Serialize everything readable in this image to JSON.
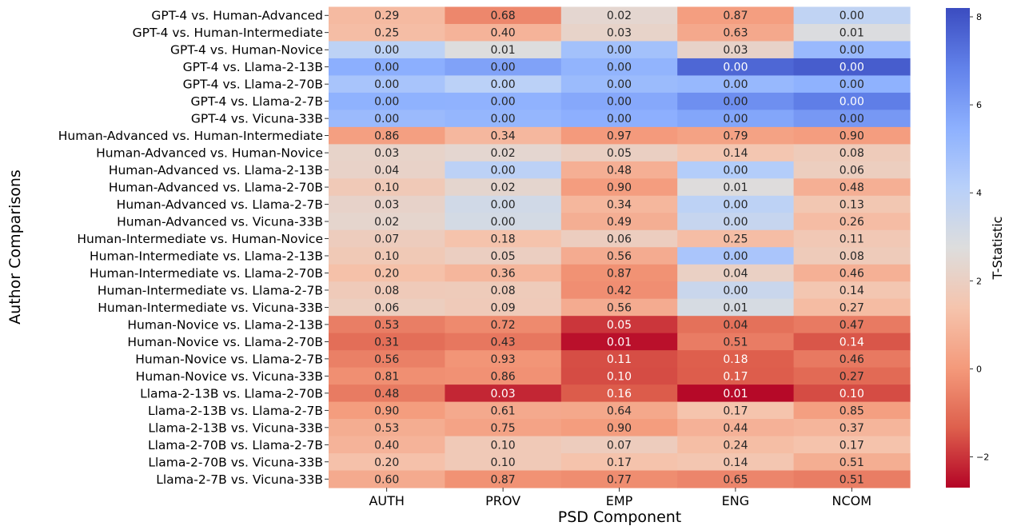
{
  "chart_data": {
    "type": "heatmap",
    "xlabel": "PSD Component",
    "ylabel": "Author Comparisons",
    "colorbar_label": "T-Statistic",
    "colorbar_ticks": [
      -2,
      0,
      2,
      4,
      6,
      8
    ],
    "colorbar_range": [
      -2.7,
      8.2
    ],
    "colormap": "coolwarm",
    "columns": [
      "AUTH",
      "PROV",
      "EMP",
      "ENG",
      "NCOM"
    ],
    "rows": [
      "GPT-4 vs. Human-Advanced",
      "GPT-4 vs. Human-Intermediate",
      "GPT-4 vs. Human-Novice",
      "GPT-4 vs. Llama-2-13B",
      "GPT-4 vs. Llama-2-70B",
      "GPT-4 vs. Llama-2-7B",
      "GPT-4 vs. Vicuna-33B",
      "Human-Advanced vs. Human-Intermediate",
      "Human-Advanced vs. Human-Novice",
      "Human-Advanced vs. Llama-2-13B",
      "Human-Advanced vs. Llama-2-70B",
      "Human-Advanced vs. Llama-2-7B",
      "Human-Advanced vs. Vicuna-33B",
      "Human-Intermediate vs. Human-Novice",
      "Human-Intermediate vs. Llama-2-13B",
      "Human-Intermediate vs. Llama-2-70B",
      "Human-Intermediate vs. Llama-2-7B",
      "Human-Intermediate vs. Vicuna-33B",
      "Human-Novice vs. Llama-2-13B",
      "Human-Novice vs. Llama-2-70B",
      "Human-Novice vs. Llama-2-7B",
      "Human-Novice vs. Vicuna-33B",
      "Llama-2-13B vs. Llama-2-70B",
      "Llama-2-13B vs. Llama-2-7B",
      "Llama-2-13B vs. Vicuna-33B",
      "Llama-2-70B vs. Llama-2-7B",
      "Llama-2-70B vs. Vicuna-33B",
      "Llama-2-7B vs. Vicuna-33B"
    ],
    "cell_labels": [
      [
        "0.29",
        "0.68",
        "0.02",
        "0.87",
        "0.00"
      ],
      [
        "0.25",
        "0.40",
        "0.03",
        "0.63",
        "0.01"
      ],
      [
        "0.00",
        "0.01",
        "0.00",
        "0.03",
        "0.00"
      ],
      [
        "0.00",
        "0.00",
        "0.00",
        "0.00",
        "0.00"
      ],
      [
        "0.00",
        "0.00",
        "0.00",
        "0.00",
        "0.00"
      ],
      [
        "0.00",
        "0.00",
        "0.00",
        "0.00",
        "0.00"
      ],
      [
        "0.00",
        "0.00",
        "0.00",
        "0.00",
        "0.00"
      ],
      [
        "0.86",
        "0.34",
        "0.97",
        "0.79",
        "0.90"
      ],
      [
        "0.03",
        "0.02",
        "0.05",
        "0.14",
        "0.08"
      ],
      [
        "0.04",
        "0.00",
        "0.48",
        "0.00",
        "0.06"
      ],
      [
        "0.10",
        "0.02",
        "0.90",
        "0.01",
        "0.48"
      ],
      [
        "0.03",
        "0.00",
        "0.34",
        "0.00",
        "0.13"
      ],
      [
        "0.02",
        "0.00",
        "0.49",
        "0.00",
        "0.26"
      ],
      [
        "0.07",
        "0.18",
        "0.06",
        "0.25",
        "0.11"
      ],
      [
        "0.10",
        "0.05",
        "0.56",
        "0.00",
        "0.08"
      ],
      [
        "0.20",
        "0.36",
        "0.87",
        "0.04",
        "0.46"
      ],
      [
        "0.08",
        "0.08",
        "0.42",
        "0.00",
        "0.14"
      ],
      [
        "0.06",
        "0.09",
        "0.56",
        "0.01",
        "0.27"
      ],
      [
        "0.53",
        "0.72",
        "0.05",
        "0.04",
        "0.47"
      ],
      [
        "0.31",
        "0.43",
        "0.01",
        "0.51",
        "0.14"
      ],
      [
        "0.56",
        "0.93",
        "0.11",
        "0.18",
        "0.46"
      ],
      [
        "0.81",
        "0.86",
        "0.10",
        "0.17",
        "0.27"
      ],
      [
        "0.48",
        "0.03",
        "0.16",
        "0.01",
        "0.10"
      ],
      [
        "0.90",
        "0.61",
        "0.64",
        "0.17",
        "0.85"
      ],
      [
        "0.53",
        "0.75",
        "0.90",
        "0.44",
        "0.37"
      ],
      [
        "0.40",
        "0.10",
        "0.07",
        "0.24",
        "0.17"
      ],
      [
        "0.20",
        "0.10",
        "0.17",
        "0.14",
        "0.51"
      ],
      [
        "0.60",
        "0.87",
        "0.77",
        "0.65",
        "0.51"
      ]
    ],
    "t_statistics": [
      [
        1.07,
        -0.42,
        2.38,
        0.16,
        3.8
      ],
      [
        1.16,
        0.85,
        2.19,
        0.48,
        2.84
      ],
      [
        3.91,
        2.74,
        4.77,
        2.16,
        5.11
      ],
      [
        5.5,
        5.89,
        5.32,
        7.53,
        7.77
      ],
      [
        4.61,
        4.01,
        5.02,
        5.15,
        5.41
      ],
      [
        5.41,
        5.38,
        5.71,
        6.46,
        6.93
      ],
      [
        5.03,
        5.23,
        5.49,
        5.78,
        6.18
      ],
      [
        0.18,
        0.97,
        0.04,
        0.27,
        0.13
      ],
      [
        2.18,
        2.38,
        1.99,
        1.49,
        1.77
      ],
      [
        2.14,
        3.98,
        0.71,
        4.26,
        1.91
      ],
      [
        1.67,
        2.33,
        0.13,
        2.72,
        0.71
      ],
      [
        2.17,
        3.22,
        0.96,
        3.91,
        1.53
      ],
      [
        2.31,
        3.1,
        0.69,
        3.61,
        1.14
      ],
      [
        1.84,
        1.35,
        1.9,
        1.16,
        1.62
      ],
      [
        1.65,
        1.95,
        0.59,
        4.56,
        1.77
      ],
      [
        1.29,
        0.93,
        -0.17,
        2.04,
        0.74
      ],
      [
        1.74,
        1.77,
        -0.25,
        3.5,
        1.49
      ],
      [
        1.91,
        1.72,
        0.59,
        3.0,
        1.12
      ],
      [
        -0.63,
        -0.36,
        -1.96,
        -0.94,
        -0.73
      ],
      [
        -1.02,
        -0.8,
        -2.52,
        -0.67,
        -1.49
      ],
      [
        -0.59,
        -0.09,
        -1.6,
        -1.35,
        -0.74
      ],
      [
        -0.24,
        -0.18,
        -1.64,
        -1.38,
        -1.1
      ],
      [
        -0.71,
        -2.2,
        -1.4,
        -2.63,
        -1.64
      ],
      [
        0.12,
        0.51,
        0.47,
        1.38,
        0.19
      ],
      [
        0.63,
        0.32,
        0.12,
        0.78,
        0.9
      ],
      [
        0.85,
        1.68,
        1.84,
        1.18,
        1.37
      ],
      [
        1.3,
        1.67,
        1.37,
        1.49,
        0.66
      ],
      [
        0.53,
        -0.17,
        -0.29,
        -0.46,
        -0.66
      ]
    ]
  }
}
